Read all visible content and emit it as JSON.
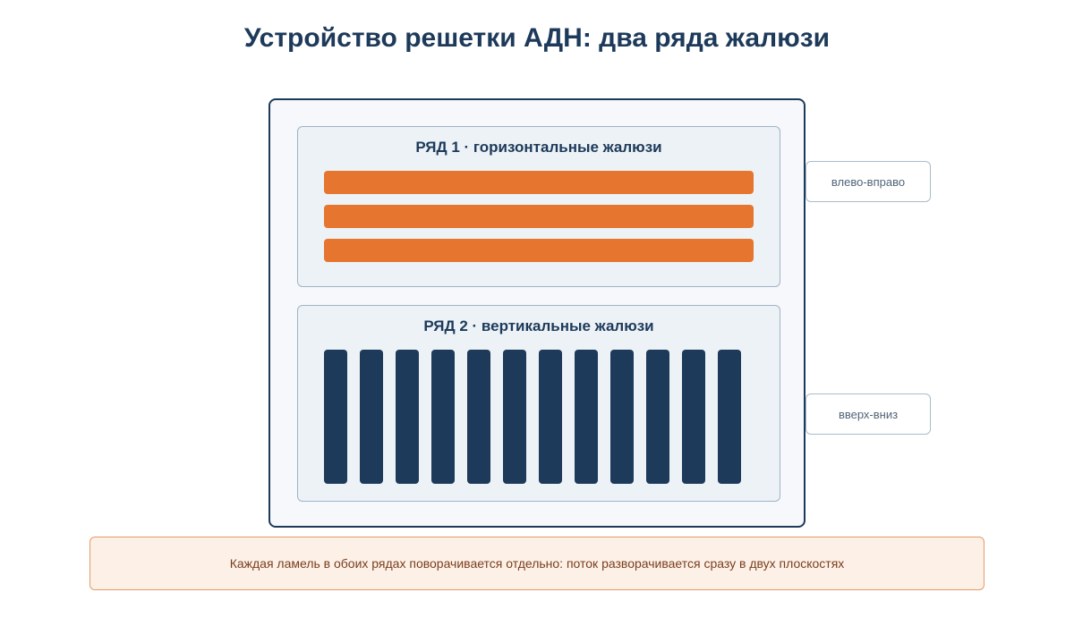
{
  "title": "Устройство решетки АДН: два ряда жалюзи",
  "row1": {
    "title": "РЯД 1 · горизонтальные жалюзи",
    "slat_count": 3,
    "slat_color": "#e5752f",
    "direction_label": "влево-вправо"
  },
  "row2": {
    "title": "РЯД 2 · вертикальные жалюзи",
    "slat_count": 12,
    "slat_color": "#1d3a5a",
    "direction_label": "вверх-вниз"
  },
  "note": "Каждая ламель в обоих рядах поворачивается отдельно: поток разворачивается сразу в двух плоскостях"
}
